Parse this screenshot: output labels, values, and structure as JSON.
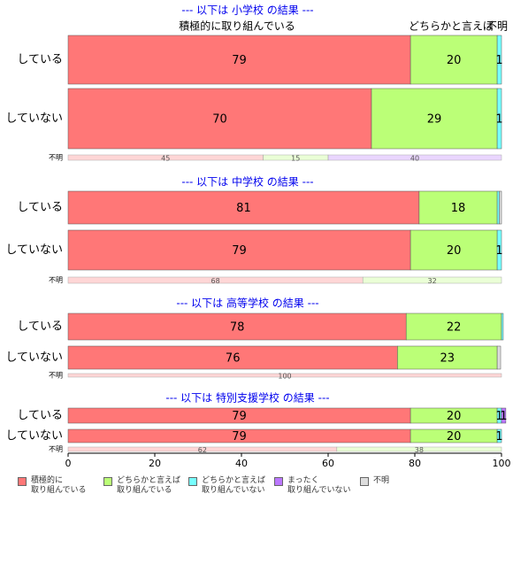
{
  "chart_data": {
    "type": "stacked_barh",
    "xlim": [
      0,
      100
    ],
    "xticks": [
      0,
      20,
      40,
      60,
      80,
      100
    ],
    "headers": [
      "積極的に取り組んでいる",
      "どちらかと言えば",
      "不明"
    ],
    "legend": [
      {
        "name": "積極的に\n取り組んでいる",
        "color": "#ff7777"
      },
      {
        "name": "どちらかと言えば\n取り組んでいる",
        "color": "#bbff77"
      },
      {
        "name": "どちらかと言えば\n取り組んでいない",
        "color": "#77ffff"
      },
      {
        "name": "まったく\n取り組んでいない",
        "color": "#bb77ff"
      },
      {
        "name": "不明",
        "color": "#dddddd"
      }
    ],
    "panels": [
      {
        "title": "--- 以下は 小学校 の結果 ---",
        "rows": [
          {
            "label": "している",
            "values": [
              79,
              20,
              1,
              0,
              0
            ]
          },
          {
            "label": "していない",
            "values": [
              70,
              29,
              1,
              0,
              0
            ]
          },
          {
            "label": "不明",
            "values": [
              45,
              15,
              0,
              40,
              0
            ]
          }
        ]
      },
      {
        "title": "--- 以下は 中学校 の結果 ---",
        "rows": [
          {
            "label": "している",
            "values": [
              81,
              18,
              0.5,
              0,
              0.5
            ]
          },
          {
            "label": "していない",
            "values": [
              79,
              20,
              1,
              0,
              0
            ]
          },
          {
            "label": "不明",
            "values": [
              68,
              32,
              0,
              0,
              0
            ]
          }
        ]
      },
      {
        "title": "--- 以下は 高等学校 の結果 ---",
        "rows": [
          {
            "label": "している",
            "values": [
              78,
              22,
              0.4,
              0,
              0
            ]
          },
          {
            "label": "していない",
            "values": [
              76,
              23,
              0,
              0,
              0.8
            ]
          },
          {
            "label": "不明",
            "values": [
              100,
              0,
              0,
              0,
              0
            ]
          }
        ]
      },
      {
        "title": "--- 以下は 特別支援学校 の結果 ---",
        "rows": [
          {
            "label": "している",
            "values": [
              79,
              20,
              1,
              1,
              0
            ]
          },
          {
            "label": "していない",
            "values": [
              79,
              20,
              1,
              0,
              0
            ]
          },
          {
            "label": "不明",
            "values": [
              62,
              38,
              0,
              0,
              0
            ]
          }
        ]
      }
    ]
  }
}
